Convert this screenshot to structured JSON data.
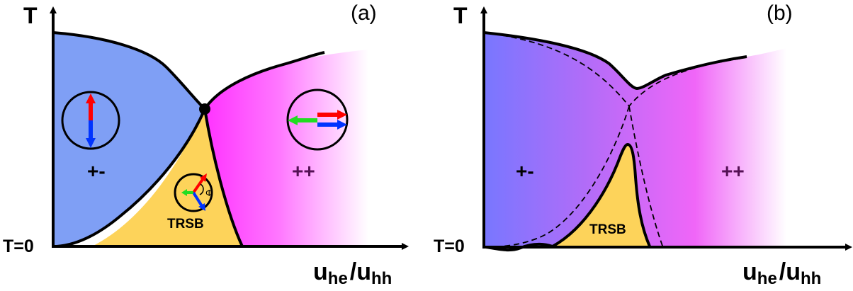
{
  "panels": [
    {
      "id": "a",
      "panel_label": "(a)",
      "y_axis_label": "T",
      "t_zero_label": "T=0",
      "x_axis_label_main": "u",
      "x_axis_label_sub1": "he",
      "x_axis_label_slash": "/u",
      "x_axis_label_sub2": "hh",
      "region_left_label": "+-",
      "region_right_label": "++",
      "region_middle_label": "TRSB",
      "phi_label": "Φ"
    },
    {
      "id": "b",
      "panel_label": "(b)",
      "y_axis_label": "T",
      "t_zero_label": "T=0",
      "x_axis_label_main": "u",
      "x_axis_label_sub1": "he",
      "x_axis_label_slash": "/u",
      "x_axis_label_sub2": "hh",
      "region_left_label": "+-",
      "region_right_label": "++",
      "region_middle_label": "TRSB"
    }
  ],
  "colors": {
    "plus_minus_region": "#7f9ff5",
    "plus_plus_region": "#ff33ff",
    "trsb_region": "#fdd35a",
    "arrow_red": "#ff0000",
    "arrow_blue": "#0033ff",
    "arrow_green": "#22dd22",
    "plus_plus_text": "#551155"
  }
}
